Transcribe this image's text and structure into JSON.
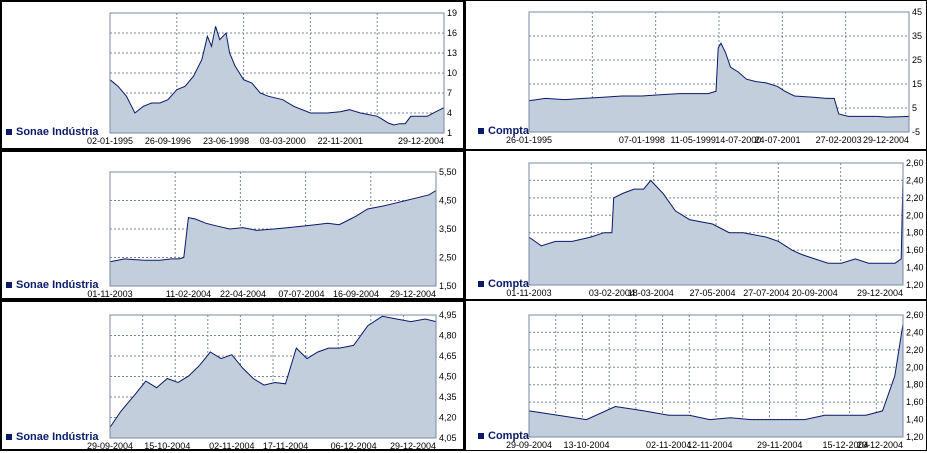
{
  "chart_data": [
    {
      "id": "sonae-1995-2004",
      "type": "area",
      "series": [
        {
          "name": "Sonae Indústria",
          "x": [
            "1995-01-02",
            "1995-04-01",
            "1995-07-01",
            "1995-10-01",
            "1996-01-01",
            "1996-04-01",
            "1996-07-01",
            "1996-09-26",
            "1997-01-01",
            "1997-04-01",
            "1997-07-01",
            "1997-10-01",
            "1997-12-01",
            "1998-01-15",
            "1998-03-01",
            "1998-04-15",
            "1998-06-23",
            "1998-08-01",
            "1998-10-01",
            "1999-01-01",
            "1999-04-01",
            "1999-07-01",
            "1999-10-01",
            "2000-03-03",
            "2000-07-01",
            "2001-01-01",
            "2001-07-01",
            "2001-11-22",
            "2002-03-01",
            "2002-07-01",
            "2003-01-01",
            "2003-05-01",
            "2003-07-01",
            "2003-09-01",
            "2003-11-01",
            "2004-01-01",
            "2004-04-01",
            "2004-07-01",
            "2004-10-01",
            "2004-12-29"
          ],
          "values": [
            9,
            8,
            6.5,
            4,
            5,
            5.5,
            5.5,
            6,
            7.5,
            8,
            9.5,
            12,
            15.5,
            14,
            17,
            15,
            16,
            13,
            11,
            9,
            8.5,
            7,
            6.5,
            6,
            5,
            4,
            4,
            4.2,
            4.5,
            4,
            3.5,
            2.5,
            2.2,
            2.4,
            2.4,
            3.5,
            3.5,
            3.5,
            4.2,
            4.8
          ]
        }
      ],
      "x_ticks": [
        "02-01-1995",
        "26-09-1996",
        "23-06-1998",
        "03-03-2000",
        "22-11-2001",
        "29-12-2004"
      ],
      "y_ticks": [
        "19",
        "16",
        "13",
        "10",
        "7",
        "4",
        "1"
      ],
      "ylim": [
        1,
        19
      ]
    },
    {
      "id": "compta-1995-2004",
      "type": "area",
      "series": [
        {
          "name": "Compta",
          "x": [
            "1995-01-26",
            "1995-07-01",
            "1996-01-01",
            "1996-07-01",
            "1997-01-01",
            "1997-07-01",
            "1998-01-07",
            "1998-07-01",
            "1999-01-01",
            "1999-05-11",
            "1999-10-01",
            "1999-12-15",
            "2000-01-05",
            "2000-02-01",
            "2000-03-15",
            "2000-05-01",
            "2000-07-14",
            "2000-10-01",
            "2001-01-01",
            "2001-04-01",
            "2001-07-24",
            "2001-10-01",
            "2002-01-01",
            "2002-07-01",
            "2002-11-01",
            "2003-01-15",
            "2003-02-27",
            "2003-06-01",
            "2003-09-01",
            "2003-12-01",
            "2004-03-01",
            "2004-06-01",
            "2004-09-01",
            "2004-12-29"
          ],
          "values": [
            8,
            9,
            8.5,
            9,
            9.5,
            10,
            10,
            10.5,
            11,
            11,
            11,
            12,
            30,
            32,
            28,
            22,
            20,
            17,
            16,
            15.5,
            14,
            12,
            10,
            9.5,
            9,
            9,
            2.5,
            1.5,
            1.5,
            1.5,
            1.5,
            1.2,
            1.3,
            1.5
          ]
        }
      ],
      "x_ticks": [
        "26-01-1995",
        "07-01-1998",
        "11-05-1999",
        "14-07-2000",
        "24-07-2001",
        "27-02-2003",
        "29-12-2004"
      ],
      "y_ticks": [
        "45",
        "35",
        "25",
        "15",
        "5",
        "-5"
      ],
      "ylim": [
        -5,
        45
      ]
    },
    {
      "id": "sonae-2003-2004",
      "type": "area",
      "series": [
        {
          "name": "Sonae Indústria",
          "x": [
            "2003-11-01",
            "2003-11-20",
            "2003-12-15",
            "2004-01-05",
            "2004-01-20",
            "2004-01-30",
            "2004-02-05",
            "2004-02-11",
            "2004-02-20",
            "2004-03-05",
            "2004-03-20",
            "2004-04-05",
            "2004-04-22",
            "2004-05-10",
            "2004-06-01",
            "2004-06-20",
            "2004-07-07",
            "2004-07-25",
            "2004-08-10",
            "2004-08-25",
            "2004-09-05",
            "2004-09-16",
            "2004-10-01",
            "2004-10-20",
            "2004-11-05",
            "2004-11-20",
            "2004-12-05",
            "2004-12-20",
            "2004-12-29"
          ],
          "values": [
            2.35,
            2.45,
            2.4,
            2.4,
            2.45,
            2.45,
            2.5,
            3.9,
            3.85,
            3.7,
            3.6,
            3.5,
            3.55,
            3.45,
            3.5,
            3.55,
            3.6,
            3.65,
            3.7,
            3.65,
            3.8,
            3.95,
            4.2,
            4.3,
            4.4,
            4.5,
            4.6,
            4.7,
            4.85
          ]
        }
      ],
      "x_ticks": [
        "01-11-2003",
        "11-02-2004",
        "22-04-2004",
        "07-07-2004",
        "16-09-2004",
        "29-12-2004"
      ],
      "y_ticks": [
        "5,50",
        "4,50",
        "3,50",
        "2,50",
        "1,50"
      ],
      "ylim": [
        1.5,
        5.5
      ]
    },
    {
      "id": "compta-2003-2004",
      "type": "area",
      "series": [
        {
          "name": "Compta",
          "x": [
            "2003-11-01",
            "2003-11-15",
            "2003-12-01",
            "2003-12-20",
            "2004-01-10",
            "2004-01-25",
            "2004-02-03",
            "2004-02-05",
            "2004-02-15",
            "2004-02-28",
            "2004-03-10",
            "2004-03-18",
            "2004-04-01",
            "2004-04-15",
            "2004-05-01",
            "2004-05-27",
            "2004-06-15",
            "2004-07-01",
            "2004-07-27",
            "2004-08-10",
            "2004-08-25",
            "2004-09-05",
            "2004-09-20",
            "2004-10-05",
            "2004-10-20",
            "2004-11-05",
            "2004-11-20",
            "2004-12-05",
            "2004-12-20",
            "2004-12-27",
            "2004-12-29"
          ],
          "values": [
            1.75,
            1.65,
            1.7,
            1.7,
            1.75,
            1.8,
            1.8,
            2.2,
            2.25,
            2.3,
            2.3,
            2.4,
            2.25,
            2.05,
            1.95,
            1.9,
            1.8,
            1.8,
            1.75,
            1.7,
            1.6,
            1.55,
            1.5,
            1.45,
            1.45,
            1.5,
            1.45,
            1.45,
            1.45,
            1.5,
            2.45
          ]
        }
      ],
      "x_ticks": [
        "01-11-2003",
        "03-02-2004",
        "18-03-2004",
        "27-05-2004",
        "27-07-2004",
        "20-09-2004",
        "29-12-2004"
      ],
      "y_ticks": [
        "2,60",
        "2,40",
        "2,20",
        "2,00",
        "1,80",
        "1,60",
        "1,40",
        "1,20"
      ],
      "ylim": [
        1.2,
        2.6
      ]
    },
    {
      "id": "sonae-2004-q4",
      "type": "area",
      "series": [
        {
          "name": "Sonae Indústria",
          "x": [
            "2004-09-29",
            "2004-10-02",
            "2004-10-06",
            "2004-10-09",
            "2004-10-12",
            "2004-10-15",
            "2004-10-18",
            "2004-10-21",
            "2004-10-24",
            "2004-10-27",
            "2004-10-30",
            "2004-11-02",
            "2004-11-05",
            "2004-11-08",
            "2004-11-11",
            "2004-11-14",
            "2004-11-17",
            "2004-11-20",
            "2004-11-23",
            "2004-11-26",
            "2004-11-29",
            "2004-12-02",
            "2004-12-06",
            "2004-12-10",
            "2004-12-14",
            "2004-12-18",
            "2004-12-22",
            "2004-12-26",
            "2004-12-29"
          ],
          "values": [
            4.13,
            4.25,
            4.38,
            4.48,
            4.43,
            4.5,
            4.47,
            4.52,
            4.6,
            4.7,
            4.65,
            4.68,
            4.58,
            4.5,
            4.45,
            4.47,
            4.46,
            4.73,
            4.65,
            4.7,
            4.73,
            4.73,
            4.75,
            4.9,
            4.97,
            4.95,
            4.93,
            4.95,
            4.93
          ]
        }
      ],
      "x_ticks": [
        "29-09-2004",
        "15-10-2004",
        "02-11-2004",
        "17-11-2004",
        "06-12-2004",
        "29-12-2004"
      ],
      "y_ticks": [
        "4,95",
        "4,80",
        "4,65",
        "4,50",
        "4,35",
        "4,20",
        "4,05"
      ],
      "ylim": [
        4.05,
        4.98
      ]
    },
    {
      "id": "compta-2004-q4",
      "type": "area",
      "series": [
        {
          "name": "Compta",
          "x": [
            "2004-09-29",
            "2004-10-06",
            "2004-10-13",
            "2004-10-20",
            "2004-10-27",
            "2004-11-02",
            "2004-11-07",
            "2004-11-12",
            "2004-11-17",
            "2004-11-22",
            "2004-11-29",
            "2004-12-05",
            "2004-12-10",
            "2004-12-15",
            "2004-12-20",
            "2004-12-24",
            "2004-12-27",
            "2004-12-29"
          ],
          "values": [
            1.5,
            1.45,
            1.4,
            1.55,
            1.5,
            1.45,
            1.45,
            1.4,
            1.42,
            1.4,
            1.4,
            1.4,
            1.45,
            1.45,
            1.45,
            1.5,
            1.9,
            2.5
          ]
        }
      ],
      "x_ticks": [
        "29-09-2004",
        "13-10-2004",
        "02-11-2004",
        "12-11-2004",
        "29-11-2004",
        "15-12-2004",
        "29-12-2004"
      ],
      "y_ticks": [
        "2,60",
        "2,40",
        "2,20",
        "2,00",
        "1,80",
        "1,60",
        "1,40",
        "1,20"
      ],
      "ylim": [
        1.2,
        2.6
      ]
    }
  ],
  "colors": {
    "area_fill": "#c2cedc",
    "line": "#0a1a6a",
    "grid": "#7a88a6",
    "plot_border": "#7a88a6",
    "legend_text": "#0a1a6a"
  }
}
